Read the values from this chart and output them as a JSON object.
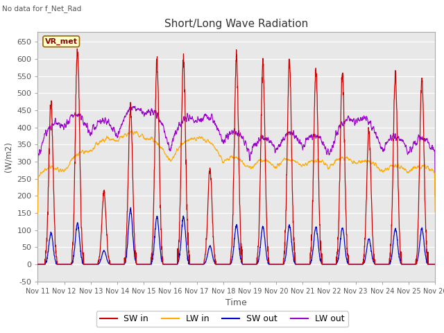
{
  "title": "Short/Long Wave Radiation",
  "xlabel": "Time",
  "ylabel": "(W/m2)",
  "ylim": [
    -50,
    680
  ],
  "yticks": [
    -50,
    0,
    50,
    100,
    150,
    200,
    250,
    300,
    350,
    400,
    450,
    500,
    550,
    600,
    650
  ],
  "no_data_text": "No data for f_Net_Rad",
  "legend_label": "VR_met",
  "plot_bg_color": "#e8e8e8",
  "fig_bg_color": "#ffffff",
  "sw_in_color": "#cc0000",
  "lw_in_color": "#ffaa00",
  "sw_out_color": "#0000cc",
  "lw_out_color": "#9900cc",
  "n_days": 15,
  "start_day": 11,
  "points_per_day": 144
}
